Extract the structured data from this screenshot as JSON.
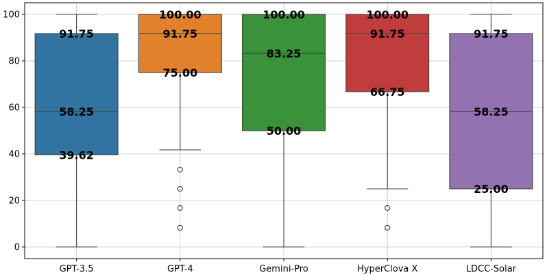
{
  "chart_data": {
    "type": "box",
    "title": "",
    "xlabel": "",
    "ylabel": "",
    "ylim": [
      -5,
      105
    ],
    "y_ticks": [
      0,
      20,
      40,
      60,
      80,
      100
    ],
    "grid": true,
    "categories": [
      "GPT-3.5",
      "GPT-4",
      "Gemini-Pro",
      "HyperClova X",
      "LDCC-Solar"
    ],
    "colors": [
      "#3274a1",
      "#e1812c",
      "#3a923a",
      "#c03d3e",
      "#9372b2"
    ],
    "boxes": [
      {
        "whisker_low": 0,
        "q1": 39.62,
        "median": 58.25,
        "q3": 91.75,
        "whisker_high": 100,
        "outliers": [],
        "labels": [
          "91.75",
          "58.25",
          "39.62"
        ]
      },
      {
        "whisker_low": 41.75,
        "q1": 75.0,
        "median": 91.75,
        "q3": 100,
        "whisker_high": 100,
        "outliers": [
          33.25,
          25,
          16.75,
          8.25
        ],
        "labels": [
          "100.00",
          "91.75",
          "75.00"
        ]
      },
      {
        "whisker_low": 0,
        "q1": 50.0,
        "median": 83.25,
        "q3": 100,
        "whisker_high": 100,
        "outliers": [],
        "labels": [
          "100.00",
          "83.25",
          "50.00"
        ]
      },
      {
        "whisker_low": 25,
        "q1": 66.75,
        "median": 91.75,
        "q3": 100,
        "whisker_high": 100,
        "outliers": [
          16.75,
          8.25
        ],
        "labels": [
          "100.00",
          "91.75",
          "66.75"
        ]
      },
      {
        "whisker_low": 0,
        "q1": 25.0,
        "median": 58.25,
        "q3": 91.75,
        "whisker_high": 100,
        "outliers": [],
        "labels": [
          "91.75",
          "58.25",
          "25.00"
        ]
      }
    ]
  }
}
